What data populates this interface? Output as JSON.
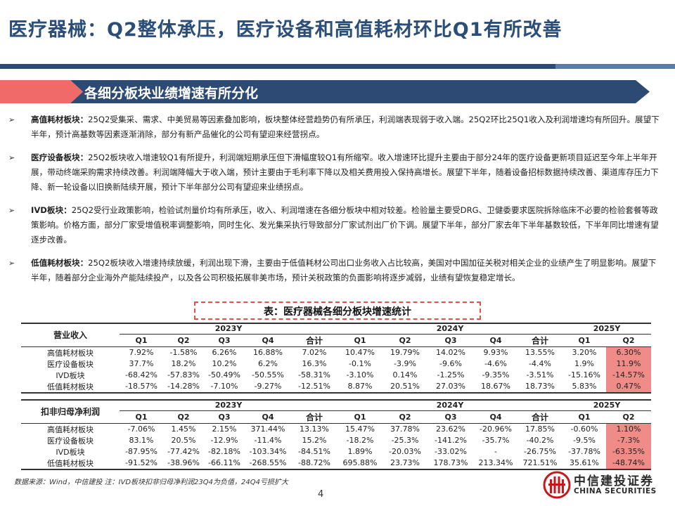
{
  "title": "医疗器械：Q2整体承压，医疗设备和高值耗材环比Q1有所改善",
  "banner": "各细分板块业绩增速有所分化",
  "bullets": [
    {
      "marker": "➢",
      "head": "高值耗材板块：",
      "body": "25Q2受集采、需求、中美贸易等因素叠加影响，板块整体经营趋势仍有所承压，利润端表现弱于收入端。25Q2环比25Q1收入及利润增速均有所回升。展望下半年，预计高基数等因素逐渐消除，部分有新产品催化的公司有望迎来经营拐点。"
    },
    {
      "marker": "➢",
      "head": "医疗设备板块：",
      "body": "25Q2板块收入增速较Q1有所提升，利润端短期承压但下滑幅度较Q1有所缩窄。收入增速环比提升主要由于部分24年的医疗设备更新项目延迟至今年上半年开展，带动终端采购需求持续改善。利润端降幅大于收入端，预计主要由于毛利率下降以及相关费用投入保持高增长。展望下半年，随着设备招标数据持续改善、渠道库存压力下降、新一轮设备以旧换新陆续开展，预计下半年部分公司有望迎来业绩拐点。"
    },
    {
      "marker": "➢",
      "head": "IVD板块：",
      "body": "25Q2受行业政策影响，检验试剂量价均有所承压，收入、利润增速在各细分板块中相对较差。检验量主要受DRG、卫健委要求医院拆除临床不必要的检验套餐等政策影响。价格方面，部分厂家受增值税率调整影响，同时生化、发光集采执行导致部分厂家试剂出厂价下调。展望下半年，部分厂家去年下半年基数较低，下半年同比增速有望逐步改善。"
    },
    {
      "marker": "➢",
      "head": "低值耗材板块：",
      "body": "25Q2板块收入增速持续放缓，利润出现下滑，主要由于低值耗材公司出口业务收入占比较高，美国对中国加征关税对相关企业的业绩产生了明显影响。展望下半年，随着部分企业海外产能陆续投产，以及各公司积极拓展非美市场，预计关税政策的负面影响将逐步减弱，业绩有望恢复稳定增长。"
    }
  ],
  "table_caption": "表：医疗器械各细分板块增速统计",
  "years": [
    "2023Y",
    "2024Y",
    "2025Y"
  ],
  "quarters23": [
    "Q1",
    "Q2",
    "Q3",
    "Q4",
    "合计"
  ],
  "quarters24": [
    "Q1",
    "Q2",
    "Q3",
    "Q4",
    "合计"
  ],
  "quarters25": [
    "Q1",
    "Q2"
  ],
  "table1": {
    "label": "营业收入",
    "rows": [
      {
        "name": "高值耗材板块",
        "v": [
          "7.92%",
          "-1.58%",
          "6.26%",
          "16.88%",
          "7.02%",
          "10.47%",
          "19.79%",
          "14.02%",
          "9.93%",
          "13.55%",
          "3.20%",
          "6.30%"
        ]
      },
      {
        "name": "医疗设备板块",
        "v": [
          "37.7%",
          "18.2%",
          "10.2%",
          "6.2%",
          "16.3%",
          "-0.1%",
          "-3.9%",
          "-9.6%",
          "-4.6%",
          "-4.4%",
          "1.9%",
          "11.9%"
        ]
      },
      {
        "name": "IVD板块",
        "v": [
          "-68.42%",
          "-57.83%",
          "-50.49%",
          "-50.55%",
          "-58.31%",
          "-3.10%",
          "0.14%",
          "-1.25%",
          "-9.35%",
          "-3.51%",
          "-15.16%",
          "-14.57%"
        ]
      },
      {
        "name": "低值耗材板块",
        "v": [
          "-18.57%",
          "-14.28%",
          "-7.10%",
          "-9.27%",
          "-12.51%",
          "8.87%",
          "20.51%",
          "27.03%",
          "18.67%",
          "18.73%",
          "5.83%",
          "0.47%"
        ]
      }
    ]
  },
  "table2": {
    "label": "扣非归母净利润",
    "rows": [
      {
        "name": "高值耗材板块",
        "v": [
          "-7.06%",
          "1.45%",
          "2.15%",
          "371.44%",
          "13.13%",
          "15.47%",
          "37.78%",
          "23.62%",
          "-20.96%",
          "17.85%",
          "-0.60%",
          "1.10%"
        ]
      },
      {
        "name": "医疗设备板块",
        "v": [
          "83.1%",
          "20.5%",
          "-12.9%",
          "-11.4%",
          "15.2%",
          "-18.2%",
          "-25.3%",
          "-141.2%",
          "-35.7%",
          "-40.2%",
          "-9.5%",
          "-7.3%"
        ]
      },
      {
        "name": "IVD板块",
        "v": [
          "-87.95%",
          "-77.42%",
          "-82.18%",
          "-103.34%",
          "-84.51%",
          "1.89%",
          "-20.03%",
          "-33.02%",
          "-",
          "-26.75%",
          "-37.78%",
          "-63.35%"
        ]
      },
      {
        "name": "低值耗材板块",
        "v": [
          "-91.52%",
          "-38.96%",
          "-66.11%",
          "-268.55%",
          "-88.72%",
          "695.88%",
          "23.73%",
          "178.73%",
          "213.34%",
          "721.51%",
          "35.61%",
          "-48.74%"
        ]
      }
    ]
  },
  "source": "数据来源：Wind，中信建投 注：IVD板块扣非归母净利润23Q4为负值，24Q4亏损扩大",
  "page": "4",
  "logo": {
    "zh": "中信建投证券",
    "en": "CHINA SECURITIES"
  },
  "colors": {
    "title": "#2b4e78",
    "banner": "#2c4a74",
    "banner_accent": "#f06a6a",
    "highlight": "#f08c88"
  }
}
